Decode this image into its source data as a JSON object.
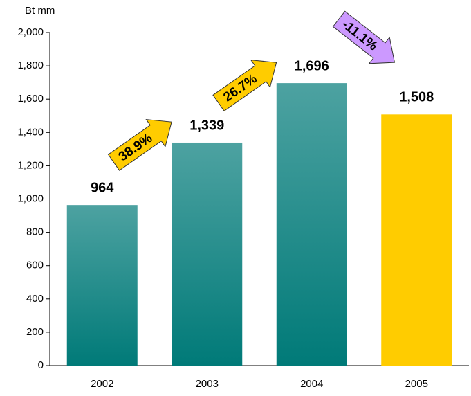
{
  "chart_data": {
    "type": "bar",
    "y_label": "Bt mm",
    "categories": [
      "2002",
      "2003",
      "2004",
      "2005"
    ],
    "values": [
      964,
      1339,
      1696,
      1508
    ],
    "value_labels": [
      "964",
      "1,339",
      "1,696",
      "1,508"
    ],
    "colors": [
      "#007a78",
      "#007a78",
      "#007a78",
      "#ffcc00"
    ],
    "fill_style": [
      "gradient",
      "gradient",
      "gradient",
      "solid"
    ],
    "ylim": [
      0,
      2000
    ],
    "yticks": [
      0,
      200,
      400,
      600,
      800,
      {
        "value": 1000,
        "label": "1,000"
      },
      {
        "value": 1200,
        "label": "1,200"
      },
      {
        "value": 1400,
        "label": "1,400"
      },
      {
        "value": 1600,
        "label": "1,600"
      },
      {
        "value": 1800,
        "label": "1,800"
      },
      {
        "value": 2000,
        "label": "2,000"
      }
    ],
    "annotations": [
      {
        "text": "38.9%",
        "color": "#ffcc00"
      },
      {
        "text": "26.7%",
        "color": "#ffcc00"
      },
      {
        "text": "-11.1%",
        "color": "#cc99ff"
      }
    ]
  }
}
